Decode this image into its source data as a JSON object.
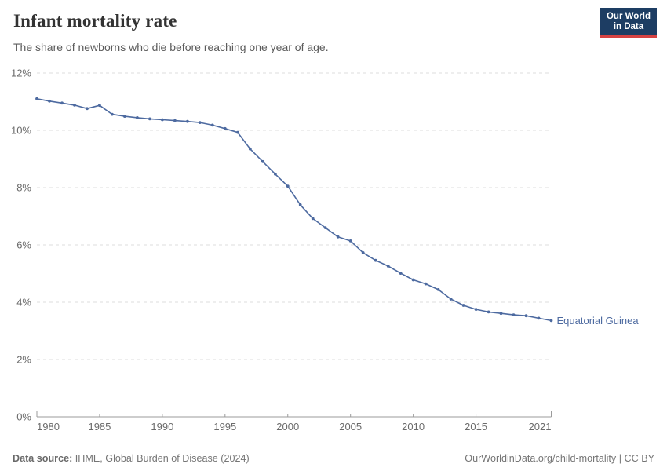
{
  "header": {
    "title": "Infant mortality rate",
    "subtitle": "The share of newborns who die before reaching one year of age."
  },
  "logo": {
    "line1": "Our World",
    "line2": "in Data",
    "background_color": "#1d3d63",
    "accent_color": "#d64242"
  },
  "chart_data": {
    "type": "line",
    "title": "Infant mortality rate",
    "x": [
      1980,
      1981,
      1982,
      1983,
      1984,
      1985,
      1986,
      1987,
      1988,
      1989,
      1990,
      1991,
      1992,
      1993,
      1994,
      1995,
      1996,
      1997,
      1998,
      1999,
      2000,
      2001,
      2002,
      2003,
      2004,
      2005,
      2006,
      2007,
      2008,
      2009,
      2010,
      2011,
      2012,
      2013,
      2014,
      2015,
      2016,
      2017,
      2018,
      2019,
      2020,
      2021
    ],
    "series": [
      {
        "name": "Equatorial Guinea",
        "color": "#4d6aa0",
        "values": [
          11.1,
          11.02,
          10.95,
          10.88,
          10.76,
          10.87,
          10.56,
          10.49,
          10.44,
          10.4,
          10.37,
          10.34,
          10.31,
          10.27,
          10.18,
          10.06,
          9.93,
          9.35,
          8.91,
          8.47,
          8.05,
          7.4,
          6.92,
          6.6,
          6.28,
          6.14,
          5.73,
          5.46,
          5.26,
          5.01,
          4.78,
          4.64,
          4.44,
          4.11,
          3.89,
          3.75,
          3.66,
          3.61,
          3.56,
          3.53,
          3.44,
          3.36
        ]
      }
    ],
    "xlim": [
      1980,
      2021
    ],
    "ylim": [
      0,
      12
    ],
    "xticks": [
      1980,
      1985,
      1990,
      1995,
      2000,
      2005,
      2010,
      2015,
      2021
    ],
    "yticks": [
      0,
      2,
      4,
      6,
      8,
      10,
      12
    ],
    "ytick_suffix": "%",
    "grid": "horizontal-dashed",
    "legend_position": "end-of-line-label",
    "grid_color": "#dcdcdc",
    "axis_color": "#9b9b9b",
    "tick_label_color": "#6b6b6b"
  },
  "footer": {
    "source_label": "Data source:",
    "source_text": " IHME, Global Burden of Disease (2024)",
    "credit": "OurWorldinData.org/child-mortality | CC BY"
  }
}
